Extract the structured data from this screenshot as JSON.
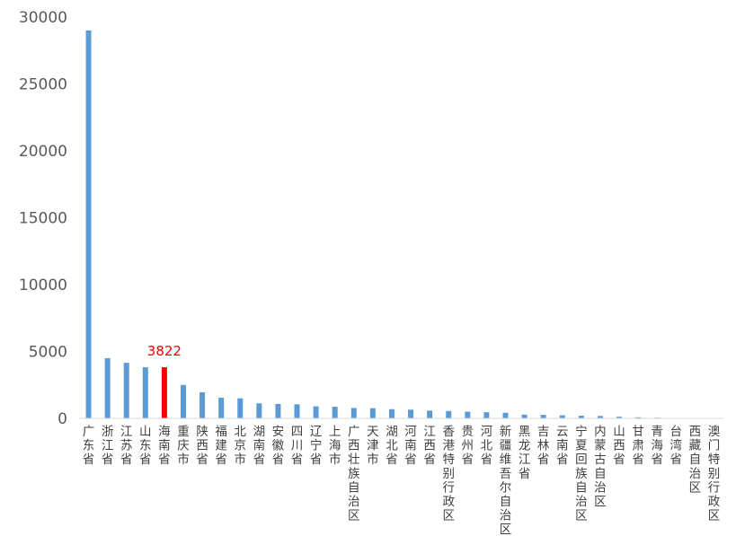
{
  "chart_data": {
    "type": "bar",
    "ylim": [
      0,
      30000
    ],
    "yticks": [
      0,
      5000,
      10000,
      15000,
      20000,
      25000,
      30000
    ],
    "grid": false,
    "legend": "none",
    "categories": [
      "广东省",
      "浙江省",
      "江苏省",
      "山东省",
      "海南省",
      "重庆市",
      "陕西省",
      "福建省",
      "北京市",
      "湖南省",
      "安徽省",
      "四川省",
      "辽宁省",
      "上海市",
      "广西壮族自治区",
      "天津市",
      "湖北省",
      "河南省",
      "江西省",
      "香港特别行政区",
      "贵州省",
      "河北省",
      "新疆维吾尔自治区",
      "黑龙江省",
      "吉林省",
      "云南省",
      "宁夏回族自治区",
      "内蒙古自治区",
      "山西省",
      "甘肃省",
      "青海省",
      "台湾省",
      "西藏自治区",
      "澳门特别行政区"
    ],
    "values": [
      29000,
      4500,
      4150,
      3820,
      3822,
      2500,
      1950,
      1550,
      1500,
      1120,
      1080,
      1050,
      900,
      870,
      780,
      760,
      690,
      650,
      580,
      550,
      500,
      460,
      420,
      280,
      260,
      230,
      200,
      180,
      120,
      80,
      50,
      20,
      10,
      5
    ],
    "highlight_index": 4,
    "data_labels": [
      {
        "index": 4,
        "text": "3822"
      }
    ],
    "colors": {
      "bar": "#5b9bd5",
      "highlight": "#ff0000",
      "label": "#ff0000",
      "axis": "#d9d9d9"
    }
  }
}
